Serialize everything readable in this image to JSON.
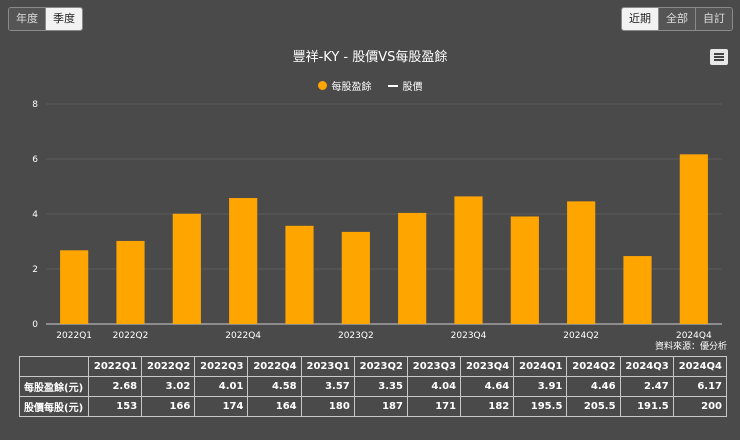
{
  "period_tabs": [
    "年度",
    "季度"
  ],
  "period_active": "季度",
  "range_tabs": [
    "近期",
    "全部",
    "自訂"
  ],
  "range_active": "近期",
  "legend": {
    "eps": "每股盈餘",
    "price": "股價"
  },
  "source": "資料來源：優分析",
  "colors": {
    "bar": "#ffa500",
    "grid": "#5c5c5c",
    "axis": "#cfcfcf"
  },
  "chart_data": {
    "type": "bar",
    "title": "豐祥-KY - 股價VS每股盈餘",
    "categories": [
      "2022Q1",
      "2022Q2",
      "2022Q3",
      "2022Q4",
      "2023Q1",
      "2023Q2",
      "2023Q3",
      "2023Q4",
      "2024Q1",
      "2024Q2",
      "2024Q3",
      "2024Q4"
    ],
    "x_tick_labels": [
      "2022Q1",
      "2022Q2",
      "",
      "2022Q4",
      "",
      "2023Q2",
      "",
      "2023Q4",
      "",
      "2024Q2",
      "",
      "2024Q4"
    ],
    "series": [
      {
        "name": "每股盈餘",
        "values": [
          2.68,
          3.02,
          4.01,
          4.58,
          3.57,
          3.35,
          4.04,
          4.64,
          3.91,
          4.46,
          2.47,
          6.17
        ]
      }
    ],
    "y_ticks": [
      0,
      2,
      4,
      6,
      8
    ],
    "ylim": [
      0,
      8
    ],
    "grid": true,
    "legend_position": "top-center"
  },
  "table": {
    "headers": [
      "",
      "2022Q1",
      "2022Q2",
      "2022Q3",
      "2022Q4",
      "2023Q1",
      "2023Q2",
      "2023Q3",
      "2023Q4",
      "2024Q1",
      "2024Q2",
      "2024Q3",
      "2024Q4"
    ],
    "rows": [
      {
        "label": "每股盈餘(元)",
        "values": [
          "2.68",
          "3.02",
          "4.01",
          "4.58",
          "3.57",
          "3.35",
          "4.04",
          "4.64",
          "3.91",
          "4.46",
          "2.47",
          "6.17"
        ]
      },
      {
        "label": "股價每股(元)",
        "values": [
          "153",
          "166",
          "174",
          "164",
          "180",
          "187",
          "171",
          "182",
          "195.5",
          "205.5",
          "191.5",
          "200"
        ]
      }
    ]
  }
}
